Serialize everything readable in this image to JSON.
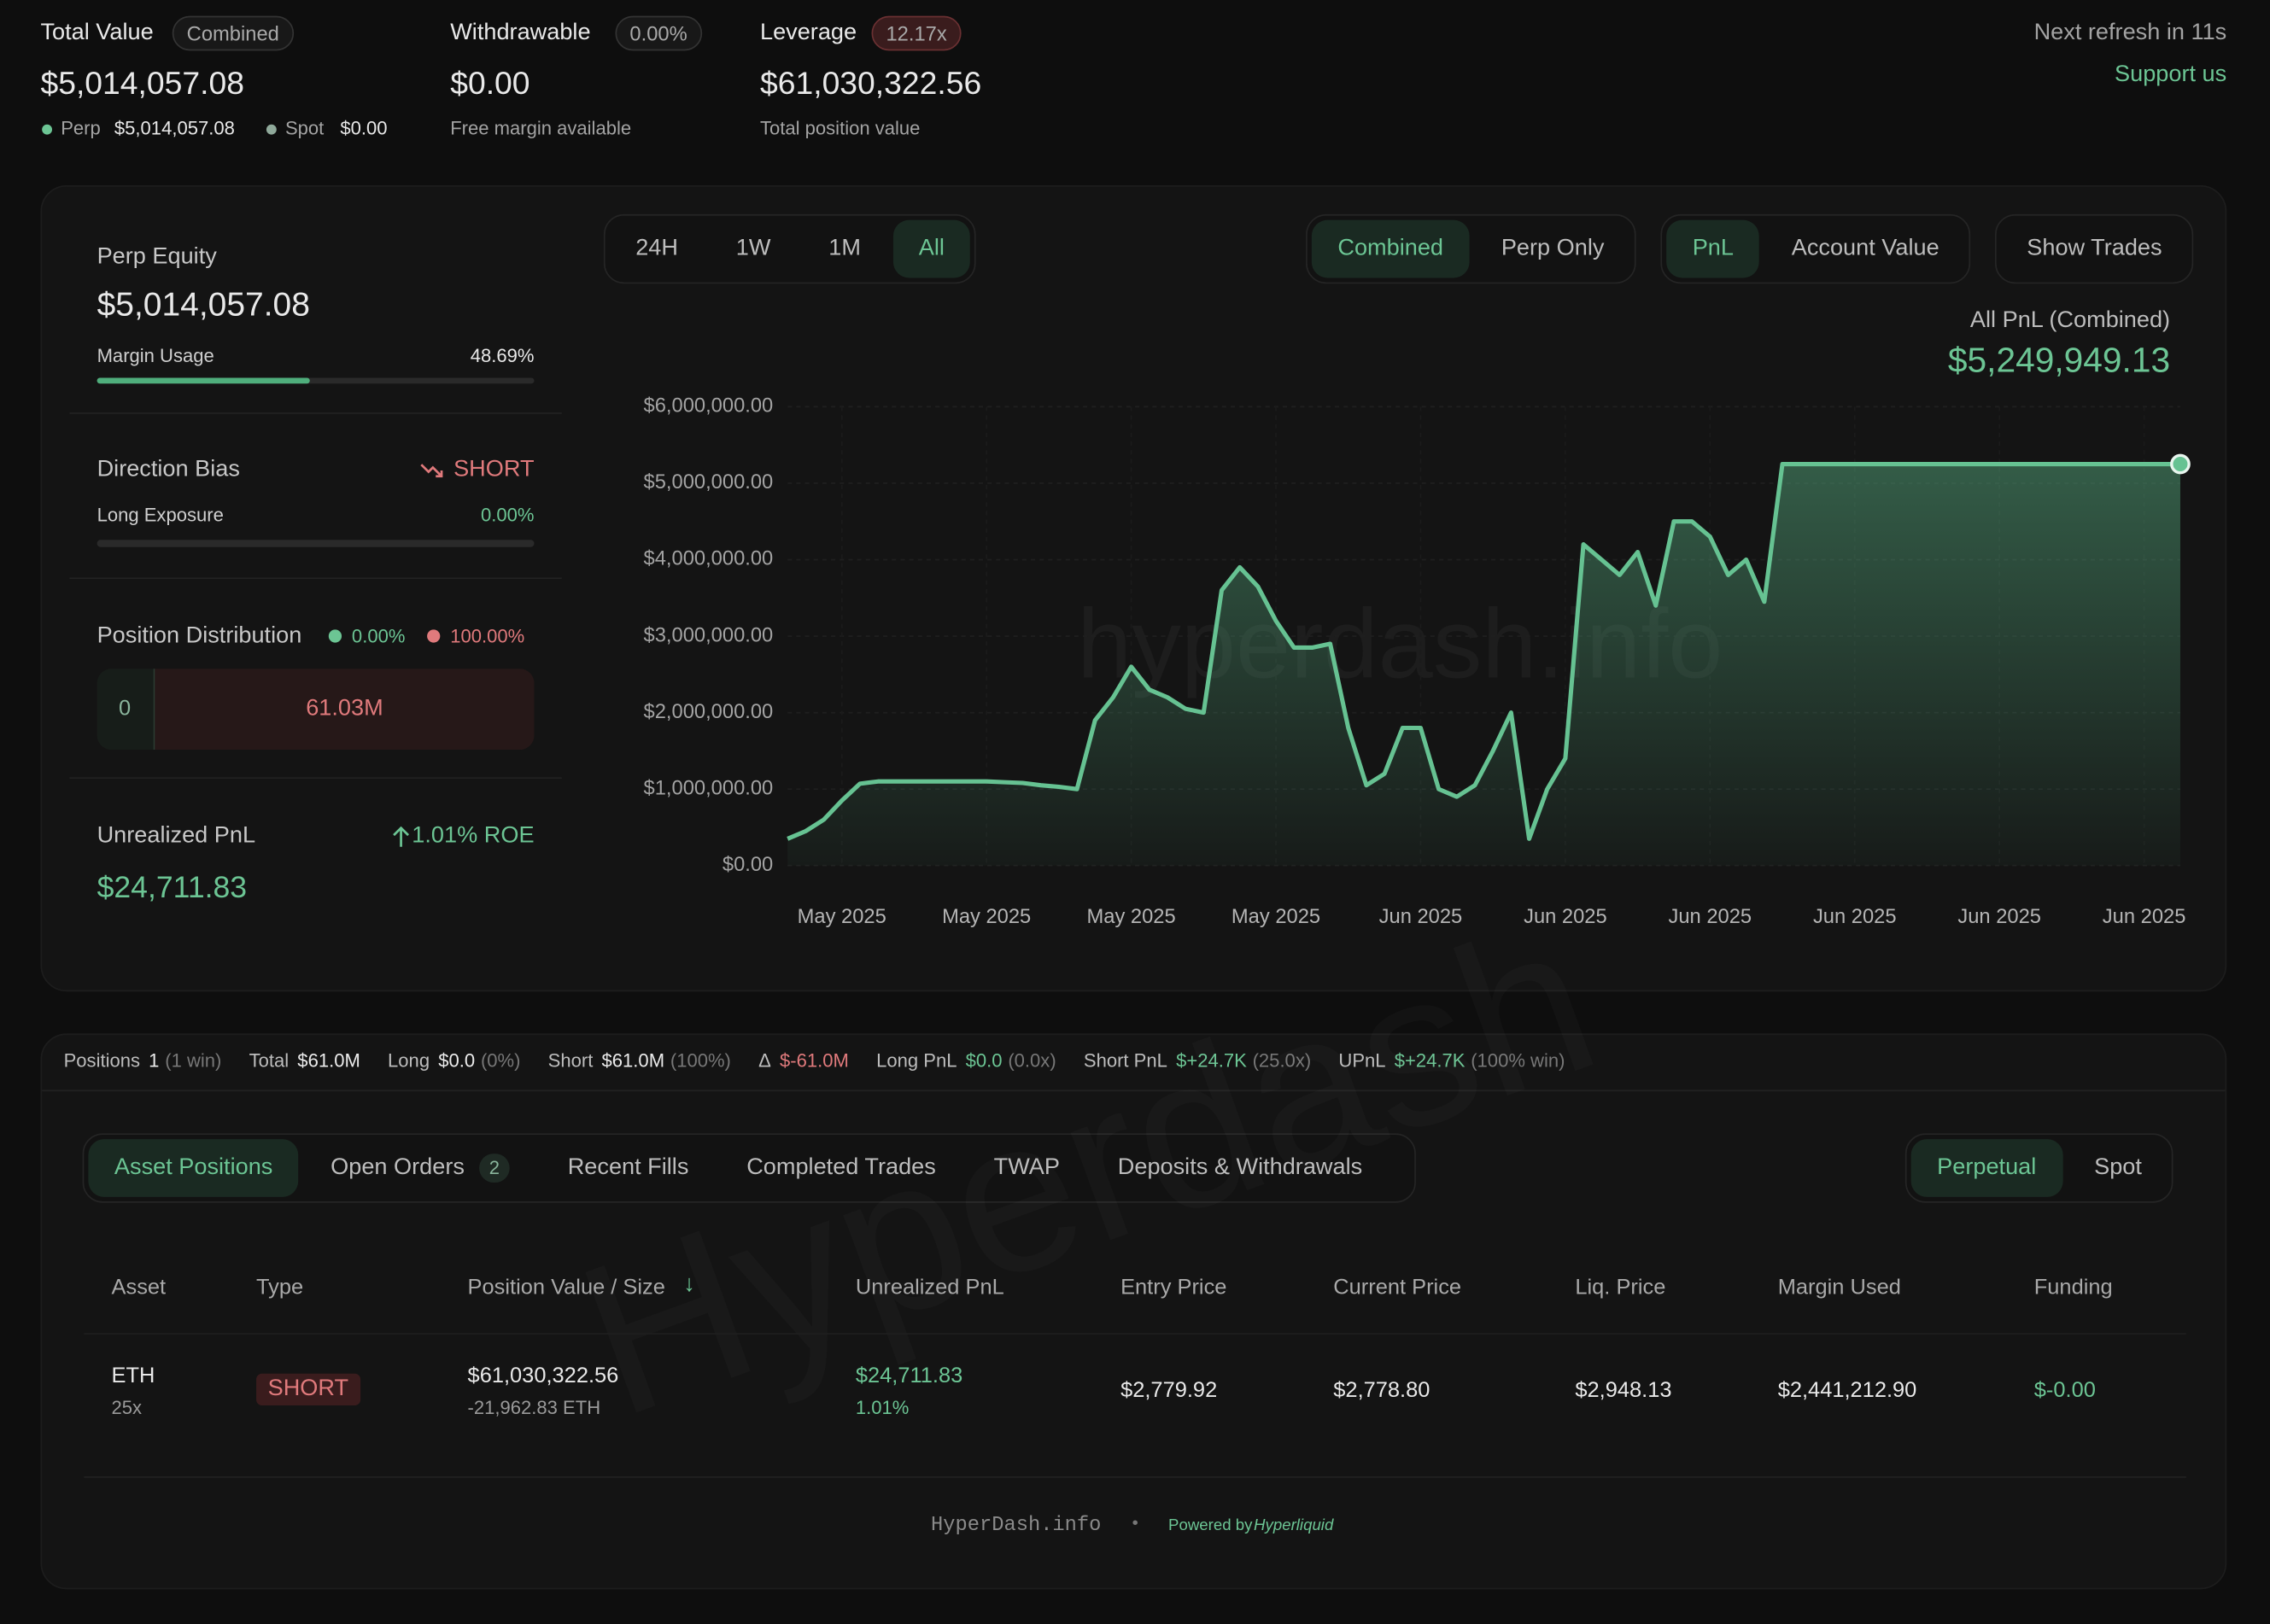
{
  "header": {
    "total_value_label": "Total Value",
    "combined_badge": "Combined",
    "total_value": "$5,014,057.08",
    "perp_label": "Perp",
    "perp_value": "$5,014,057.08",
    "spot_label": "Spot",
    "spot_value": "$0.00",
    "withdrawable_label": "Withdrawable",
    "withdrawable_badge": "0.00%",
    "withdrawable_value": "$0.00",
    "withdrawable_sub": "Free margin available",
    "leverage_label": "Leverage",
    "leverage_badge": "12.17x",
    "leverage_value": "$61,030,322.56",
    "leverage_sub": "Total position value",
    "refresh": "Next refresh in 11s",
    "support": "Support us"
  },
  "sidebar": {
    "perp_equity_label": "Perp Equity",
    "perp_equity": "$5,014,057.08",
    "margin_usage_label": "Margin Usage",
    "margin_usage": {
      "value": 48.69,
      "label": "48.69%"
    },
    "direction_bias_label": "Direction Bias",
    "direction_bias": "SHORT",
    "long_exposure_label": "Long Exposure",
    "long_exposure": {
      "value": 0,
      "label": "0.00%"
    },
    "position_distribution_label": "Position Distribution",
    "long_share": "0.00%",
    "short_share": "100.00%",
    "long_amount": "0",
    "short_amount": "61.03M",
    "unrealized_pnl_label": "Unrealized PnL",
    "roe": "1.01% ROE",
    "unrealized_pnl": "$24,711.83"
  },
  "chart_controls": {
    "ranges": [
      "24H",
      "1W",
      "1M",
      "All"
    ],
    "modes": [
      "Combined",
      "Perp Only"
    ],
    "metrics": [
      "PnL",
      "Account Value"
    ],
    "show_trades": "Show Trades"
  },
  "chart_data": {
    "type": "line",
    "title": "All PnL (Combined)",
    "headline": "$5,249,949.13",
    "watermark": "hyperdash.info",
    "categories": [
      null,
      null,
      null,
      "May 2025",
      null,
      null,
      null,
      null,
      null,
      null,
      null,
      "May 2025",
      null,
      null,
      null,
      null,
      null,
      null,
      null,
      "May 2025",
      null,
      null,
      null,
      null,
      null,
      null,
      null,
      "May 2025",
      null,
      null,
      null,
      null,
      null,
      null,
      null,
      "Jun 2025",
      null,
      null,
      null,
      null,
      null,
      null,
      null,
      "Jun 2025",
      null,
      null,
      null,
      null,
      null,
      null,
      null,
      "Jun 2025",
      null,
      null,
      null,
      null,
      null,
      null,
      null,
      "Jun 2025",
      null,
      null,
      null,
      null,
      null,
      null,
      null,
      "Jun 2025",
      null,
      null,
      null,
      null,
      null,
      null,
      null,
      "Jun 2025",
      null,
      null
    ],
    "series": [
      {
        "color": "#66c292",
        "values": [
          350000,
          450000,
          600000,
          850000,
          1070000,
          1100000,
          1100000,
          1100000,
          1100000,
          1100000,
          1100000,
          1100000,
          1090000,
          1080000,
          1050000,
          1030000,
          1000000,
          1900000,
          2200000,
          2600000,
          2300000,
          2200000,
          2050000,
          2000000,
          3600000,
          3900000,
          3650000,
          3200000,
          2850000,
          2850000,
          2900000,
          1800000,
          1050000,
          1200000,
          1800000,
          1800000,
          1000000,
          900000,
          1050000,
          1500000,
          2000000,
          350000,
          1000000,
          1400000,
          4200000,
          4000000,
          3800000,
          4100000,
          3400000,
          4500000,
          4500000,
          4300000,
          3800000,
          4000000,
          3450000,
          5249949.13,
          5249949.13,
          5249949.13,
          5249949.13,
          5249949.13,
          5249949.13,
          5249949.13,
          5249949.13,
          5249949.13,
          5249949.13,
          5249949.13,
          5249949.13,
          5249949.13,
          5249949.13,
          5249949.13,
          5249949.13,
          5249949.13,
          5249949.13,
          5249949.13,
          5249949.13,
          5249949.13,
          5249949.13,
          5249949.13
        ]
      }
    ],
    "ylim": [
      0,
      6000000
    ],
    "yticks": [
      {
        "value": 0,
        "label": "$0.00"
      },
      {
        "value": 1000000,
        "label": "$1,000,000.00"
      },
      {
        "value": 2000000,
        "label": "$2,000,000.00"
      },
      {
        "value": 3000000,
        "label": "$3,000,000.00"
      },
      {
        "value": 4000000,
        "label": "$4,000,000.00"
      },
      {
        "value": 5000000,
        "label": "$5,000,000.00"
      },
      {
        "value": 6000000,
        "label": "$6,000,000.00"
      }
    ],
    "grid": true
  },
  "summary": [
    {
      "label": "Positions",
      "value": "1",
      "note": "(1 win)",
      "tone": "plain"
    },
    {
      "label": "Total",
      "value": "$61.0M",
      "tone": "plain"
    },
    {
      "label": "Long",
      "value": "$0.0",
      "note": "(0%)",
      "tone": "plain"
    },
    {
      "label": "Short",
      "value": "$61.0M",
      "note": "(100%)",
      "tone": "plain"
    },
    {
      "label": "Δ",
      "value": "$-61.0M",
      "tone": "red"
    },
    {
      "label": "Long PnL",
      "value": "$0.0",
      "note": "(0.0x)",
      "tone": "green"
    },
    {
      "label": "Short PnL",
      "value": "$+24.7K",
      "note": "(25.0x)",
      "tone": "green"
    },
    {
      "label": "UPnL",
      "value": "$+24.7K",
      "note": "(100% win)",
      "tone": "green"
    }
  ],
  "tabs": {
    "items": [
      "Asset Positions",
      "Open Orders",
      "Recent Fills",
      "Completed Trades",
      "TWAP",
      "Deposits & Withdrawals"
    ],
    "open_orders_count": "2",
    "markets": [
      "Perpetual",
      "Spot"
    ]
  },
  "table": {
    "watermark": "Hyperdash",
    "columns": [
      "Asset",
      "Type",
      "Position Value / Size",
      "Unrealized PnL",
      "Entry Price",
      "Current Price",
      "Liq. Price",
      "Margin Used",
      "Funding"
    ],
    "rows": [
      [
        [
          "ETH",
          "25x"
        ],
        [
          "SHORT"
        ],
        [
          "$61,030,322.56",
          "-21,962.83 ETH"
        ],
        [
          "$24,711.83",
          "1.01%"
        ],
        [
          "$2,779.92"
        ],
        [
          "$2,778.80"
        ],
        [
          "$2,948.13"
        ],
        [
          "$2,441,212.90"
        ],
        [
          "$-0.00"
        ]
      ]
    ]
  },
  "footer": {
    "site": "HyperDash.info",
    "powered_by": "Powered by",
    "brand": "Hyperliquid"
  }
}
